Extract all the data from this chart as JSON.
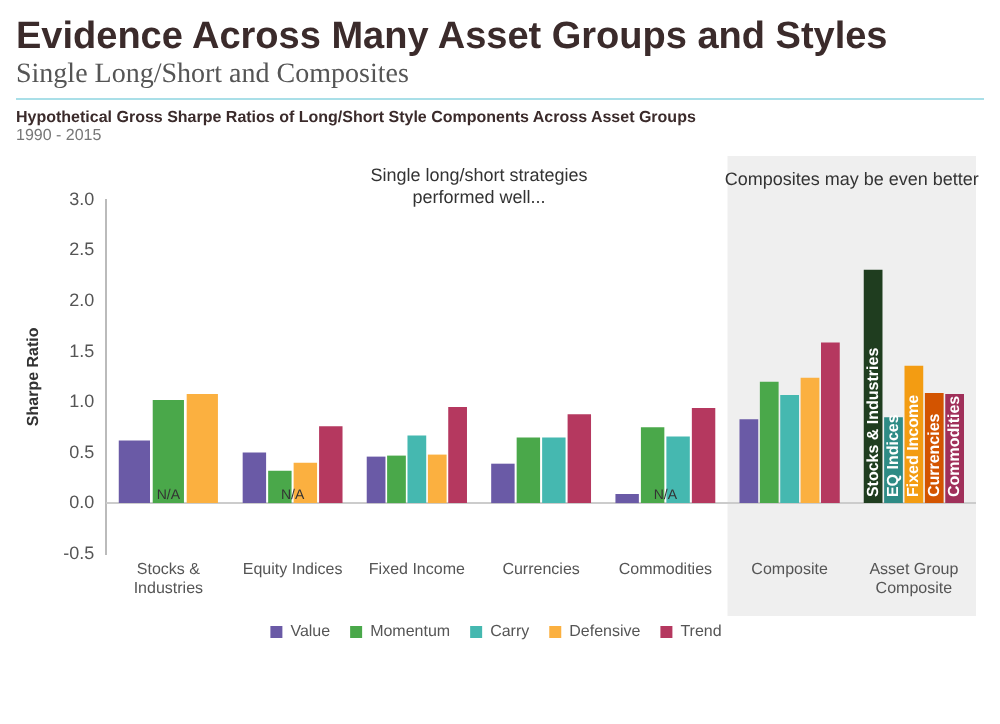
{
  "chart_data": {
    "type": "bar",
    "title": "Evidence Across Many Asset Groups and Styles",
    "subtitle": "Single Long/Short and Composites",
    "annotations": [
      "Hypothetical Gross Sharpe Ratios of Long/Short Style Components Across Asset Groups",
      "1990 - 2015",
      "Single long/short strategies performed well...",
      "Composites may be even better",
      {
        "text": "N/A",
        "x": "Stocks & Industries",
        "y": 0
      },
      {
        "text": "N/A",
        "x": "Equity Indices",
        "y": 0
      },
      {
        "text": "N/A",
        "x": "Commodities",
        "y": 0
      }
    ],
    "ylabel": "Sharpe Ratio",
    "categories": [
      "Stocks & Industries",
      "Equity Indices",
      "Fixed Income",
      "Currencies",
      "Commodities",
      "Composite",
      "Asset Group Composite"
    ],
    "series": [
      {
        "name": "Value",
        "color": "#6a5aa6",
        "values": [
          0.62,
          0.5,
          0.46,
          0.39,
          0.09,
          0.83,
          null
        ]
      },
      {
        "name": "Momentum",
        "color": "#4aa84a",
        "values": [
          1.02,
          0.32,
          0.47,
          0.65,
          0.75,
          1.2,
          null
        ]
      },
      {
        "name": "Carry",
        "color": "#45b8b0",
        "values": [
          null,
          null,
          0.67,
          0.65,
          0.66,
          1.07,
          null
        ]
      },
      {
        "name": "Defensive",
        "color": "#fbb040",
        "values": [
          1.08,
          0.4,
          0.48,
          null,
          null,
          1.24,
          null
        ]
      },
      {
        "name": "Trend",
        "color": "#b5385f",
        "values": [
          null,
          0.76,
          0.95,
          0.88,
          0.94,
          1.59,
          null
        ]
      },
      {
        "name": "Stocks & Industries",
        "color": "#1f3d1f",
        "values": [
          null,
          null,
          null,
          null,
          null,
          null,
          2.31
        ]
      },
      {
        "name": "EQ Indices",
        "color": "#2e8b85",
        "values": [
          null,
          null,
          null,
          null,
          null,
          null,
          0.85
        ]
      },
      {
        "name": "Fixed Income",
        "color": "#f39c12",
        "values": [
          null,
          null,
          null,
          null,
          null,
          null,
          1.36
        ]
      },
      {
        "name": "Currencies",
        "color": "#d35400",
        "values": [
          null,
          null,
          null,
          null,
          null,
          null,
          1.09
        ]
      },
      {
        "name": "Commodities",
        "color": "#a0305a",
        "values": [
          null,
          null,
          null,
          null,
          null,
          null,
          1.08
        ]
      }
    ],
    "ylim": [
      -0.5,
      3
    ],
    "yticks": [
      {
        "value": -0.5,
        "label": "-0.5"
      },
      {
        "value": 0,
        "label": "0.0"
      },
      {
        "value": 0.5,
        "label": "0.5"
      },
      {
        "value": 1,
        "label": "1.0"
      },
      {
        "value": 1.5,
        "label": "1.5"
      },
      {
        "value": 2,
        "label": "2.0"
      },
      {
        "value": 2.5,
        "label": "2.5"
      },
      {
        "value": 3,
        "label": "3.0"
      }
    ],
    "ref_lines": [
      {
        "axis": "y",
        "value": 0,
        "color": "#cccccc"
      }
    ],
    "bands": [
      {
        "axis": "x",
        "from": "Composite",
        "to": "Asset Group Composite",
        "color": "#efefef"
      }
    ],
    "grid": false,
    "legend": "bottom"
  }
}
